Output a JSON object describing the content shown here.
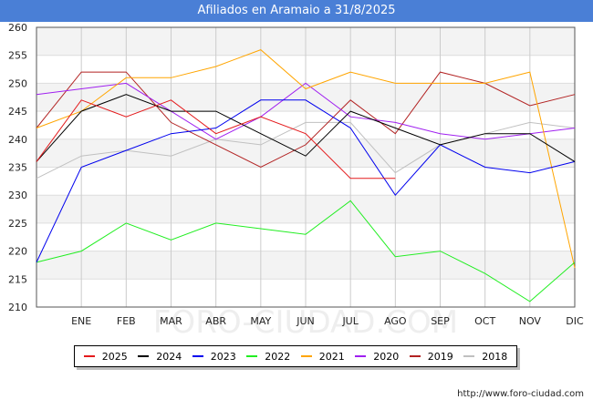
{
  "title": "Afiliados en Aramaio a 31/8/2025",
  "source": "http://www.foro-ciudad.com",
  "watermark": "FORO-CIUDAD.COM",
  "chart_data": {
    "type": "line",
    "title": "Afiliados en Aramaio a 31/8/2025",
    "categories": [
      "",
      "ENE",
      "FEB",
      "MAR",
      "ABR",
      "MAY",
      "JUN",
      "JUL",
      "AGO",
      "SEP",
      "OCT",
      "NOV",
      "DIC"
    ],
    "ylim": [
      210,
      260
    ],
    "yticks": [
      210,
      215,
      220,
      225,
      230,
      235,
      240,
      245,
      250,
      255,
      260
    ],
    "grid": true,
    "legend_position": "bottom",
    "series": [
      {
        "name": "2025",
        "color": "#e41a1c",
        "values": [
          236,
          247,
          244,
          247,
          241,
          244,
          241,
          233,
          233,
          null,
          null,
          null,
          null
        ]
      },
      {
        "name": "2024",
        "color": "#000000",
        "values": [
          236,
          245,
          248,
          245,
          245,
          241,
          237,
          245,
          242,
          239,
          241,
          241,
          236
        ]
      },
      {
        "name": "2023",
        "color": "#0000ee",
        "values": [
          218,
          235,
          238,
          241,
          242,
          247,
          247,
          242,
          230,
          239,
          235,
          234,
          236
        ]
      },
      {
        "name": "2022",
        "color": "#22ee22",
        "values": [
          218,
          220,
          225,
          222,
          225,
          224,
          223,
          229,
          219,
          220,
          216,
          211,
          218
        ]
      },
      {
        "name": "2021",
        "color": "#ffa500",
        "values": [
          242,
          245,
          251,
          251,
          253,
          256,
          249,
          252,
          250,
          250,
          250,
          252,
          217
        ]
      },
      {
        "name": "2020",
        "color": "#a020f0",
        "values": [
          248,
          249,
          250,
          245,
          240,
          244,
          250,
          244,
          243,
          241,
          240,
          241,
          242
        ]
      },
      {
        "name": "2019",
        "color": "#b22222",
        "values": [
          242,
          252,
          252,
          243,
          239,
          235,
          239,
          247,
          241,
          252,
          250,
          246,
          248
        ]
      },
      {
        "name": "2018",
        "color": "#c0c0c0",
        "values": [
          233,
          237,
          238,
          237,
          240,
          239,
          243,
          243,
          234,
          239,
          241,
          243,
          242
        ]
      }
    ]
  }
}
